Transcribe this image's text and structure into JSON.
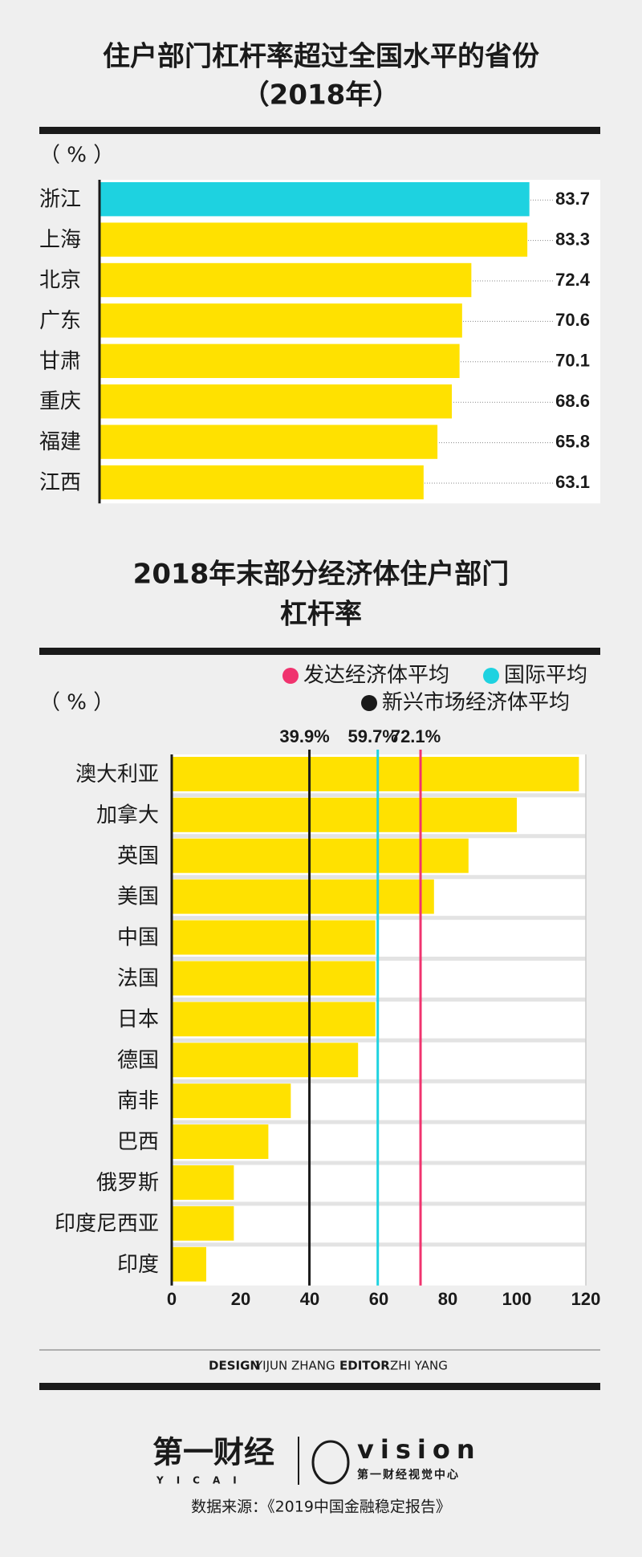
{
  "chart_data": [
    {
      "type": "bar",
      "orientation": "horizontal",
      "title": [
        "住户部门杠杆率超过全国水平的省份",
        "（2018年）"
      ],
      "unit": "（ % ）",
      "categories": [
        "浙江",
        "上海",
        "北京",
        "广东",
        "甘肃",
        "重庆",
        "福建",
        "江西"
      ],
      "values": [
        83.7,
        83.3,
        72.4,
        70.6,
        70.1,
        68.6,
        65.8,
        63.1
      ],
      "colors": [
        "#1ed2e0",
        "#ffe100",
        "#ffe100",
        "#ffe100",
        "#ffe100",
        "#ffe100",
        "#ffe100",
        "#ffe100"
      ]
    },
    {
      "type": "bar",
      "orientation": "horizontal",
      "title": [
        "2018年末部分经济体住户部门",
        "杠杆率"
      ],
      "unit": "（ % ）",
      "categories": [
        "澳大利亚",
        "加拿大",
        "英国",
        "美国",
        "中国",
        "法国",
        "日本",
        "德国",
        "南非",
        "巴西",
        "俄罗斯",
        "印度尼西亚",
        "印度"
      ],
      "values": [
        118,
        100,
        86,
        76,
        59,
        59,
        59,
        54,
        34.5,
        28,
        18,
        18,
        10
      ],
      "color": "#ffe100",
      "xlim": [
        0,
        120
      ],
      "xticks": [
        0,
        20,
        40,
        60,
        80,
        100,
        120
      ],
      "reference_lines": [
        {
          "name": "发达经济体平均",
          "value": 72.1,
          "label": "72.1%",
          "color": "#f0336e"
        },
        {
          "name": "国际平均",
          "value": 59.7,
          "label": "59.7%",
          "color": "#1ed2e0"
        },
        {
          "name": "新兴市场经济体平均",
          "value": 39.9,
          "label": "39.9%",
          "color": "#1a1a1a"
        }
      ]
    }
  ],
  "footer": {
    "credits": [
      {
        "role": "DESIGN",
        "name": "YIJUN ZHANG"
      },
      {
        "role": "EDITOR",
        "name": "ZHI YANG"
      }
    ],
    "logo": "第一财经",
    "logo_sub": "YICAI",
    "brand": "vision",
    "brand_sub": "第一财经视觉中心",
    "source": "数据来源：《2019中国金融稳定报告》"
  }
}
